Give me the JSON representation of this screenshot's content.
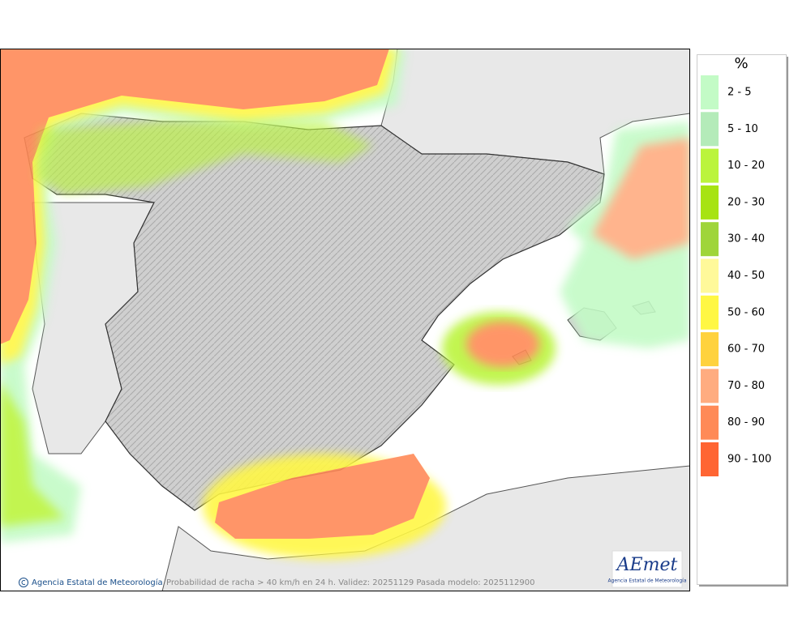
{
  "legend": {
    "title": "%",
    "items": [
      {
        "label": "2 - 5",
        "color": "#c3fbc6"
      },
      {
        "label": "5 - 10",
        "color": "#b4ebb9"
      },
      {
        "label": "10 - 20",
        "color": "#bbf43c"
      },
      {
        "label": "20 - 30",
        "color": "#a7e313"
      },
      {
        "label": "30 - 40",
        "color": "#9fd53a"
      },
      {
        "label": "40 - 50",
        "color": "#fff99a"
      },
      {
        "label": "50 - 60",
        "color": "#fff744"
      },
      {
        "label": "60 - 70",
        "color": "#ffd23e"
      },
      {
        "label": "70 - 80",
        "color": "#ffac80"
      },
      {
        "label": "80 - 90",
        "color": "#ff8a57"
      },
      {
        "label": "90 - 100",
        "color": "#ff6533"
      }
    ]
  },
  "map": {
    "credit": "Agencia Estatal de Meteorología",
    "caption": "Probabilidad de racha > 40 km/h en 24 h. Validez: 20251129 Pasada modelo: 2025112900"
  },
  "logo": {
    "name": "AEmet",
    "subtitle": "Agencia Estatal de Meteorología"
  }
}
